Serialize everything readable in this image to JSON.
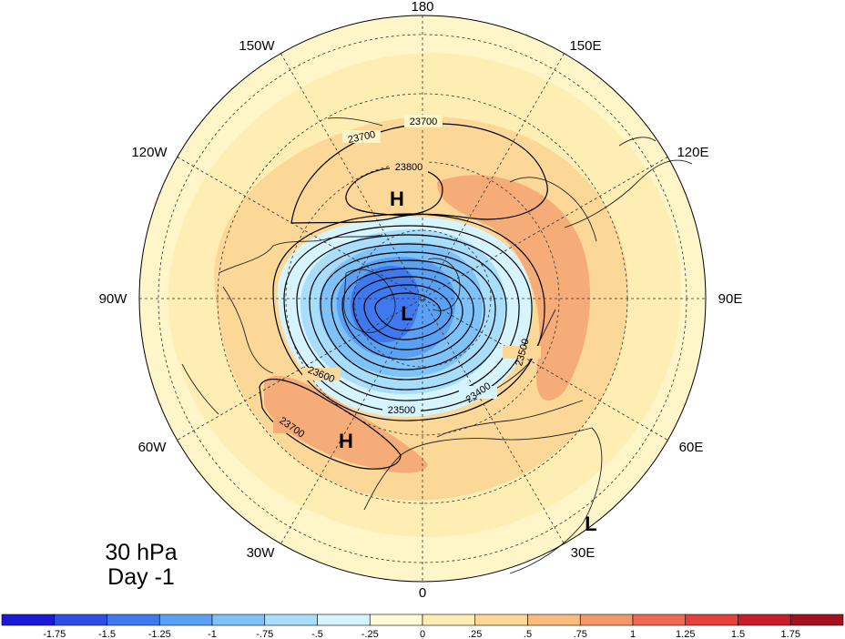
{
  "panel": {
    "level": "30 hPa",
    "time": "Day -1"
  },
  "longitude_labels": [
    "180",
    "150E",
    "120E",
    "90E",
    "60E",
    "30E",
    "0",
    "30W",
    "60W",
    "90W",
    "120W",
    "150W"
  ],
  "contours": {
    "units_note": "",
    "labels": [
      "23700",
      "23700",
      "23800",
      "23600",
      "23500",
      "23400",
      "23500",
      "23700"
    ]
  },
  "pressure_centers": [
    {
      "type": "H",
      "region": "north-pacific"
    },
    {
      "type": "L",
      "region": "pole-greenland"
    },
    {
      "type": "H",
      "region": "subtropical-atlantic"
    },
    {
      "type": "L",
      "region": "east-africa"
    }
  ],
  "colorbar": {
    "colors": [
      "#1a1ad6",
      "#2d4fe6",
      "#3f78ef",
      "#5aa0f5",
      "#7fc2fa",
      "#a8defc",
      "#d6f4fd",
      "#fefbd6",
      "#feeeb4",
      "#fcd898",
      "#f9bb7e",
      "#f59869",
      "#ef6a50",
      "#e4403c",
      "#c81e2c",
      "#a3111e"
    ],
    "tick_labels": [
      "-1.75",
      "-1.5",
      "-1.25",
      "-1",
      "-.75",
      "-.5",
      "-.25",
      "0",
      ".25",
      ".5",
      ".75",
      "1",
      "1.25",
      "1.5",
      "1.75"
    ]
  }
}
